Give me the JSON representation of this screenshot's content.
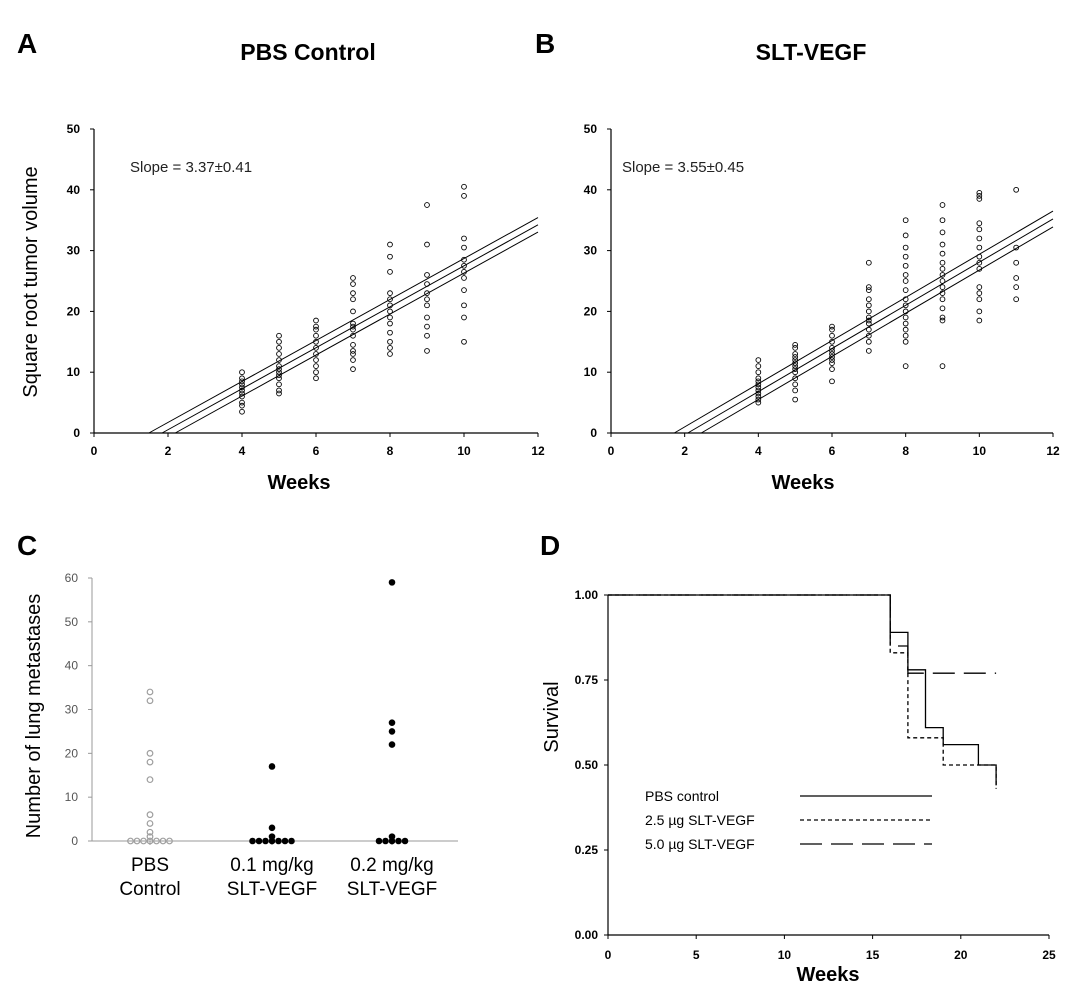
{
  "chart_data": [
    {
      "panel": "A",
      "type": "scatter",
      "title": "PBS Control",
      "xlabel": "Weeks",
      "ylabel": "Square root tumor volume",
      "xlim": [
        0,
        12
      ],
      "ylim": [
        0,
        50
      ],
      "xticks": [
        "0",
        "2",
        "4",
        "6",
        "8",
        "10",
        "12"
      ],
      "yticks": [
        "0",
        "10",
        "20",
        "30",
        "40",
        "50"
      ],
      "annotation": "Slope = 3.37±0.41",
      "fit": {
        "slope": 3.37,
        "intercept": -6.2,
        "band": 1.2
      },
      "points": [
        {
          "x": 4,
          "ys": [
            3.5,
            4.5,
            5,
            6,
            6.5,
            7,
            7.5,
            8,
            8.5,
            9,
            10
          ]
        },
        {
          "x": 5,
          "ys": [
            6.5,
            7,
            8,
            9,
            9.5,
            10,
            10.5,
            11,
            12,
            13,
            14,
            15,
            16
          ]
        },
        {
          "x": 6,
          "ys": [
            9,
            10,
            11,
            12,
            13,
            14,
            15,
            16,
            17,
            17.5,
            18.5
          ]
        },
        {
          "x": 7,
          "ys": [
            10.5,
            12,
            13,
            13.5,
            14.5,
            16,
            17,
            17.5,
            18,
            20,
            22,
            23,
            24.5,
            25.5
          ]
        },
        {
          "x": 8,
          "ys": [
            13,
            14,
            15,
            16.5,
            18,
            19,
            20,
            21,
            22,
            23,
            26.5,
            29,
            31
          ]
        },
        {
          "x": 9,
          "ys": [
            13.5,
            16,
            17.5,
            19,
            21,
            22,
            23,
            24.5,
            26,
            31,
            37.5
          ]
        },
        {
          "x": 10,
          "ys": [
            15,
            19,
            21,
            23.5,
            25.5,
            26.5,
            27.5,
            28.5,
            30.5,
            32,
            39,
            40.5
          ]
        }
      ]
    },
    {
      "panel": "B",
      "type": "scatter",
      "title": "SLT-VEGF",
      "xlabel": "Weeks",
      "ylabel": "",
      "xlim": [
        0,
        12
      ],
      "ylim": [
        0,
        50
      ],
      "xticks": [
        "0",
        "2",
        "4",
        "6",
        "8",
        "10",
        "12"
      ],
      "yticks": [
        "0",
        "10",
        "20",
        "30",
        "40",
        "50"
      ],
      "annotation": "Slope = 3.55±0.45",
      "fit": {
        "slope": 3.55,
        "intercept": -7.4,
        "band": 1.3
      },
      "points": [
        {
          "x": 4,
          "ys": [
            5,
            5.5,
            6,
            6.5,
            7,
            7.5,
            8,
            8.5,
            9,
            10,
            11,
            12
          ]
        },
        {
          "x": 5,
          "ys": [
            5.5,
            7,
            8,
            9,
            10,
            10.5,
            11,
            11.5,
            12,
            12.5,
            13,
            14,
            14.5
          ]
        },
        {
          "x": 6,
          "ys": [
            8.5,
            10.5,
            11.5,
            12,
            12.5,
            13,
            13.5,
            14,
            15,
            16,
            17,
            17.5
          ]
        },
        {
          "x": 7,
          "ys": [
            13.5,
            15,
            16,
            17,
            18,
            18.5,
            19,
            20,
            21,
            22,
            23.5,
            24,
            28
          ]
        },
        {
          "x": 8,
          "ys": [
            11,
            15,
            16,
            17,
            18,
            19,
            20,
            21,
            22,
            23.5,
            25,
            26,
            27.5,
            29,
            30.5,
            32.5,
            35
          ]
        },
        {
          "x": 9,
          "ys": [
            11,
            18.5,
            19,
            20.5,
            22,
            23,
            24,
            25,
            26,
            27,
            28,
            29.5,
            31,
            33,
            35,
            37.5
          ]
        },
        {
          "x": 10,
          "ys": [
            18.5,
            20,
            22,
            23,
            24,
            27,
            28,
            29,
            30.5,
            32,
            33.5,
            34.5,
            38.5,
            39,
            39.5
          ]
        },
        {
          "x": 11,
          "ys": [
            22,
            24,
            25.5,
            28,
            30.5,
            40
          ]
        }
      ]
    },
    {
      "panel": "C",
      "type": "scatter",
      "title": "",
      "xlabel": "",
      "ylabel": "Number of lung metastases",
      "ylim": [
        0,
        60
      ],
      "yticks": [
        "0",
        "10",
        "20",
        "30",
        "40",
        "50",
        "60"
      ],
      "categories": [
        {
          "line1": "PBS",
          "line2": "Control"
        },
        {
          "line1": "0.1 mg/kg",
          "line2": "SLT-VEGF"
        },
        {
          "line1": "0.2 mg/kg",
          "line2": "SLT-VEGF"
        }
      ],
      "groups": [
        {
          "name": "PBS Control",
          "color": "#9e9e9e",
          "filled": false,
          "values": [
            0,
            0,
            0,
            0,
            0,
            0,
            0,
            1,
            2,
            4,
            6,
            14,
            18,
            20,
            32,
            34
          ]
        },
        {
          "name": "0.1 mg/kg SLT-VEGF",
          "color": "#000000",
          "filled": true,
          "values": [
            0,
            0,
            0,
            0,
            0,
            0,
            0,
            1,
            3,
            17
          ]
        },
        {
          "name": "0.2 mg/kg SLT-VEGF",
          "color": "#000000",
          "filled": true,
          "values": [
            0,
            0,
            0,
            0,
            0,
            1,
            22,
            25,
            27,
            59
          ]
        }
      ]
    },
    {
      "panel": "D",
      "type": "line",
      "title": "",
      "xlabel": "Weeks",
      "ylabel": "Survival",
      "xlim": [
        0,
        25
      ],
      "ylim": [
        0,
        1.0
      ],
      "xticks": [
        "0",
        "5",
        "10",
        "15",
        "20",
        "25"
      ],
      "yticks": [
        "0.00",
        "0.25",
        "0.50",
        "0.75",
        "1.00"
      ],
      "series": [
        {
          "name": "PBS control",
          "dash": "",
          "steps": [
            [
              0,
              1.0
            ],
            [
              16,
              1.0
            ],
            [
              16,
              0.89
            ],
            [
              17,
              0.89
            ],
            [
              17,
              0.78
            ],
            [
              18,
              0.78
            ],
            [
              18,
              0.61
            ],
            [
              19,
              0.61
            ],
            [
              19,
              0.56
            ],
            [
              21,
              0.56
            ],
            [
              21,
              0.5
            ],
            [
              22,
              0.5
            ],
            [
              22,
              0.44
            ]
          ]
        },
        {
          "name": "2.5 µg SLT-VEGF",
          "dash": "4,3",
          "steps": [
            [
              0,
              1.0
            ],
            [
              16,
              1.0
            ],
            [
              16,
              0.83
            ],
            [
              17,
              0.83
            ],
            [
              17,
              0.58
            ],
            [
              18,
              0.58
            ],
            [
              19,
              0.58
            ],
            [
              19,
              0.5
            ],
            [
              22,
              0.5
            ],
            [
              22,
              0.43
            ]
          ]
        },
        {
          "name": "5.0 µg SLT-VEGF",
          "dash": "22,9",
          "steps": [
            [
              0,
              1.0
            ],
            [
              16,
              1.0
            ],
            [
              16,
              0.85
            ],
            [
              17,
              0.85
            ],
            [
              17,
              0.77
            ],
            [
              22,
              0.77
            ]
          ]
        }
      ]
    }
  ]
}
